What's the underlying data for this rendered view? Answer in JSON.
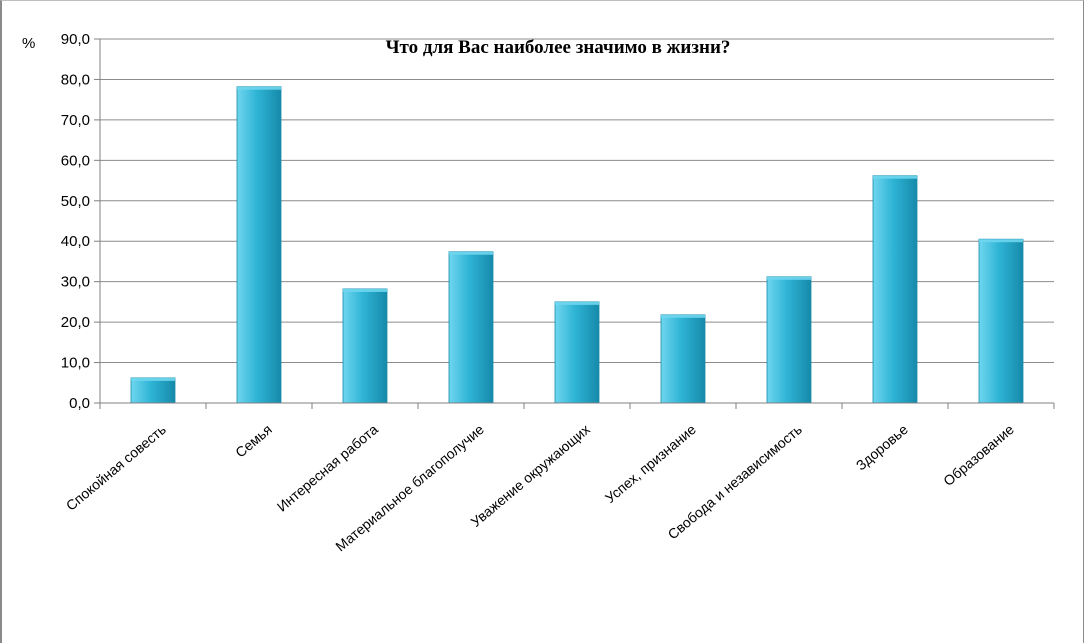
{
  "chart_data": {
    "type": "bar",
    "title": "Что для Вас наиболее значимо в жизни?",
    "unit_label": "%",
    "categories": [
      "Спокойная совесть",
      "Семья",
      "Интересная работа",
      "Материальное благополучие",
      "Уважение окружающих",
      "Успех, признание",
      "Свобода и независимость",
      "Здоровье",
      "Образование"
    ],
    "values": [
      6.2,
      78.2,
      28.2,
      37.4,
      25.0,
      21.8,
      31.2,
      56.2,
      40.5
    ],
    "y_ticks": [
      "0,0",
      "10,0",
      "20,0",
      "30,0",
      "40,0",
      "50,0",
      "60,0",
      "70,0",
      "80,0",
      "90,0"
    ],
    "ylim": [
      0,
      90
    ],
    "grid": true,
    "legend": "none",
    "colors": {
      "bar_light": "#6fd6ee",
      "bar_mid": "#2fb4d6",
      "bar_dark": "#168aa9",
      "grid": "#8c8c8c",
      "axis": "#808080"
    }
  }
}
